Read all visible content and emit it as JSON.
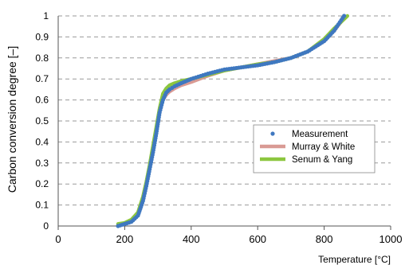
{
  "chart_data": {
    "type": "line",
    "title": "",
    "xlabel": "Temperature [°C]",
    "ylabel": "Carbon conversion degree [–]",
    "xlim": [
      0,
      1000
    ],
    "ylim": [
      0,
      1
    ],
    "x_ticks": [
      0,
      200,
      400,
      600,
      800,
      1000
    ],
    "y_ticks": [
      0,
      0.1,
      0.2,
      0.3,
      0.4,
      0.5,
      0.6,
      0.7,
      0.8,
      0.9,
      1
    ],
    "x_tick_labels": [
      "0",
      "200",
      "400",
      "600",
      "800",
      "1000"
    ],
    "y_tick_labels": [
      "0",
      "0.1",
      "0.2",
      "0.3",
      "0.4",
      "0.5",
      "0.6",
      "0.7",
      "0.8",
      "0.9",
      "1"
    ],
    "grid": "horizontal dashed",
    "legend_position": "right",
    "series": [
      {
        "name": "Measurement",
        "kind": "scatter",
        "color": "#3f78c0",
        "x": [
          180,
          200,
          220,
          240,
          255,
          265,
          275,
          285,
          295,
          305,
          315,
          325,
          335,
          350,
          370,
          400,
          450,
          500,
          550,
          600,
          650,
          700,
          750,
          800,
          830,
          860
        ],
        "y": [
          0.0,
          0.01,
          0.02,
          0.05,
          0.12,
          0.19,
          0.27,
          0.35,
          0.44,
          0.54,
          0.6,
          0.635,
          0.65,
          0.665,
          0.68,
          0.7,
          0.725,
          0.745,
          0.755,
          0.765,
          0.78,
          0.8,
          0.83,
          0.88,
          0.93,
          1.0
        ]
      },
      {
        "name": "Murray & White",
        "kind": "line",
        "color": "#d99a94",
        "x": [
          180,
          200,
          220,
          240,
          255,
          265,
          275,
          285,
          295,
          305,
          315,
          325,
          335,
          350,
          370,
          400,
          450,
          500,
          550,
          600,
          650,
          700,
          750,
          800,
          830,
          860
        ],
        "y": [
          0.005,
          0.01,
          0.025,
          0.06,
          0.13,
          0.2,
          0.28,
          0.37,
          0.46,
          0.55,
          0.6,
          0.625,
          0.64,
          0.655,
          0.67,
          0.685,
          0.715,
          0.74,
          0.755,
          0.77,
          0.785,
          0.8,
          0.83,
          0.88,
          0.93,
          0.99
        ]
      },
      {
        "name": "Senum & Yang",
        "kind": "line",
        "color": "#8cc63f",
        "x": [
          180,
          200,
          220,
          240,
          255,
          265,
          275,
          285,
          295,
          305,
          315,
          325,
          335,
          350,
          370,
          400,
          450,
          500,
          550,
          600,
          650,
          700,
          750,
          800,
          830,
          870
        ],
        "y": [
          0.01,
          0.015,
          0.03,
          0.065,
          0.14,
          0.21,
          0.29,
          0.38,
          0.47,
          0.56,
          0.63,
          0.655,
          0.67,
          0.68,
          0.69,
          0.7,
          0.72,
          0.74,
          0.755,
          0.77,
          0.78,
          0.8,
          0.83,
          0.89,
          0.94,
          1.0
        ]
      }
    ]
  }
}
